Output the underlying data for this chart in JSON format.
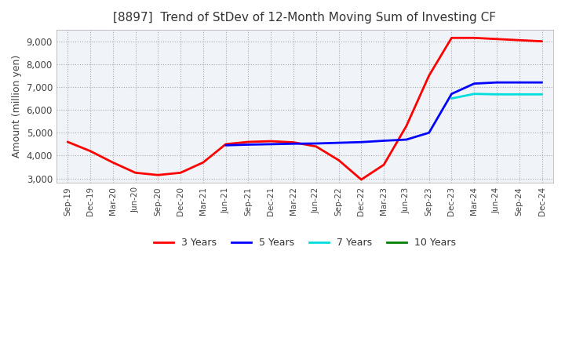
{
  "title": "[8897]  Trend of StDev of 12-Month Moving Sum of Investing CF",
  "ylabel": "Amount (million yen)",
  "ylim": [
    2800,
    9500
  ],
  "yticks": [
    3000,
    4000,
    5000,
    6000,
    7000,
    8000,
    9000
  ],
  "background_color": "#ffffff",
  "plot_bg_color": "#f0f4f8",
  "grid_color": "#aaaaaa",
  "series": {
    "3 Years": {
      "color": "#ff0000",
      "y": [
        4600,
        4200,
        3700,
        3250,
        3150,
        3250,
        3700,
        4500,
        4600,
        4630,
        4580,
        4400,
        3800,
        2950,
        3600,
        5300,
        7500,
        9150,
        9150,
        9100,
        9050,
        9000
      ]
    },
    "5 Years": {
      "color": "#0000ff",
      "y": [
        null,
        null,
        null,
        null,
        null,
        null,
        null,
        4450,
        4480,
        4500,
        4520,
        4530,
        4560,
        4590,
        4650,
        4700,
        5000,
        6700,
        7150,
        7200,
        7200,
        7200
      ]
    },
    "7 Years": {
      "color": "#00dddd",
      "y": [
        null,
        null,
        null,
        null,
        null,
        null,
        null,
        null,
        null,
        null,
        null,
        null,
        null,
        null,
        null,
        null,
        null,
        6500,
        6700,
        6680,
        6680,
        6680
      ]
    },
    "10 Years": {
      "color": "#008000",
      "y": [
        null,
        null,
        null,
        null,
        null,
        null,
        null,
        null,
        null,
        null,
        null,
        null,
        null,
        null,
        null,
        null,
        null,
        null,
        null,
        null,
        null,
        null
      ]
    }
  },
  "legend_labels": [
    "3 Years",
    "5 Years",
    "7 Years",
    "10 Years"
  ],
  "legend_colors": [
    "#ff0000",
    "#0000ff",
    "#00dddd",
    "#008000"
  ],
  "x_labels": [
    "Sep-19",
    "Dec-19",
    "Mar-20",
    "Jun-20",
    "Sep-20",
    "Dec-20",
    "Mar-21",
    "Jun-21",
    "Sep-21",
    "Dec-21",
    "Mar-22",
    "Jun-22",
    "Sep-22",
    "Dec-22",
    "Mar-23",
    "Jun-23",
    "Sep-23",
    "Dec-23",
    "Mar-24",
    "Jun-24",
    "Sep-24",
    "Dec-24"
  ]
}
